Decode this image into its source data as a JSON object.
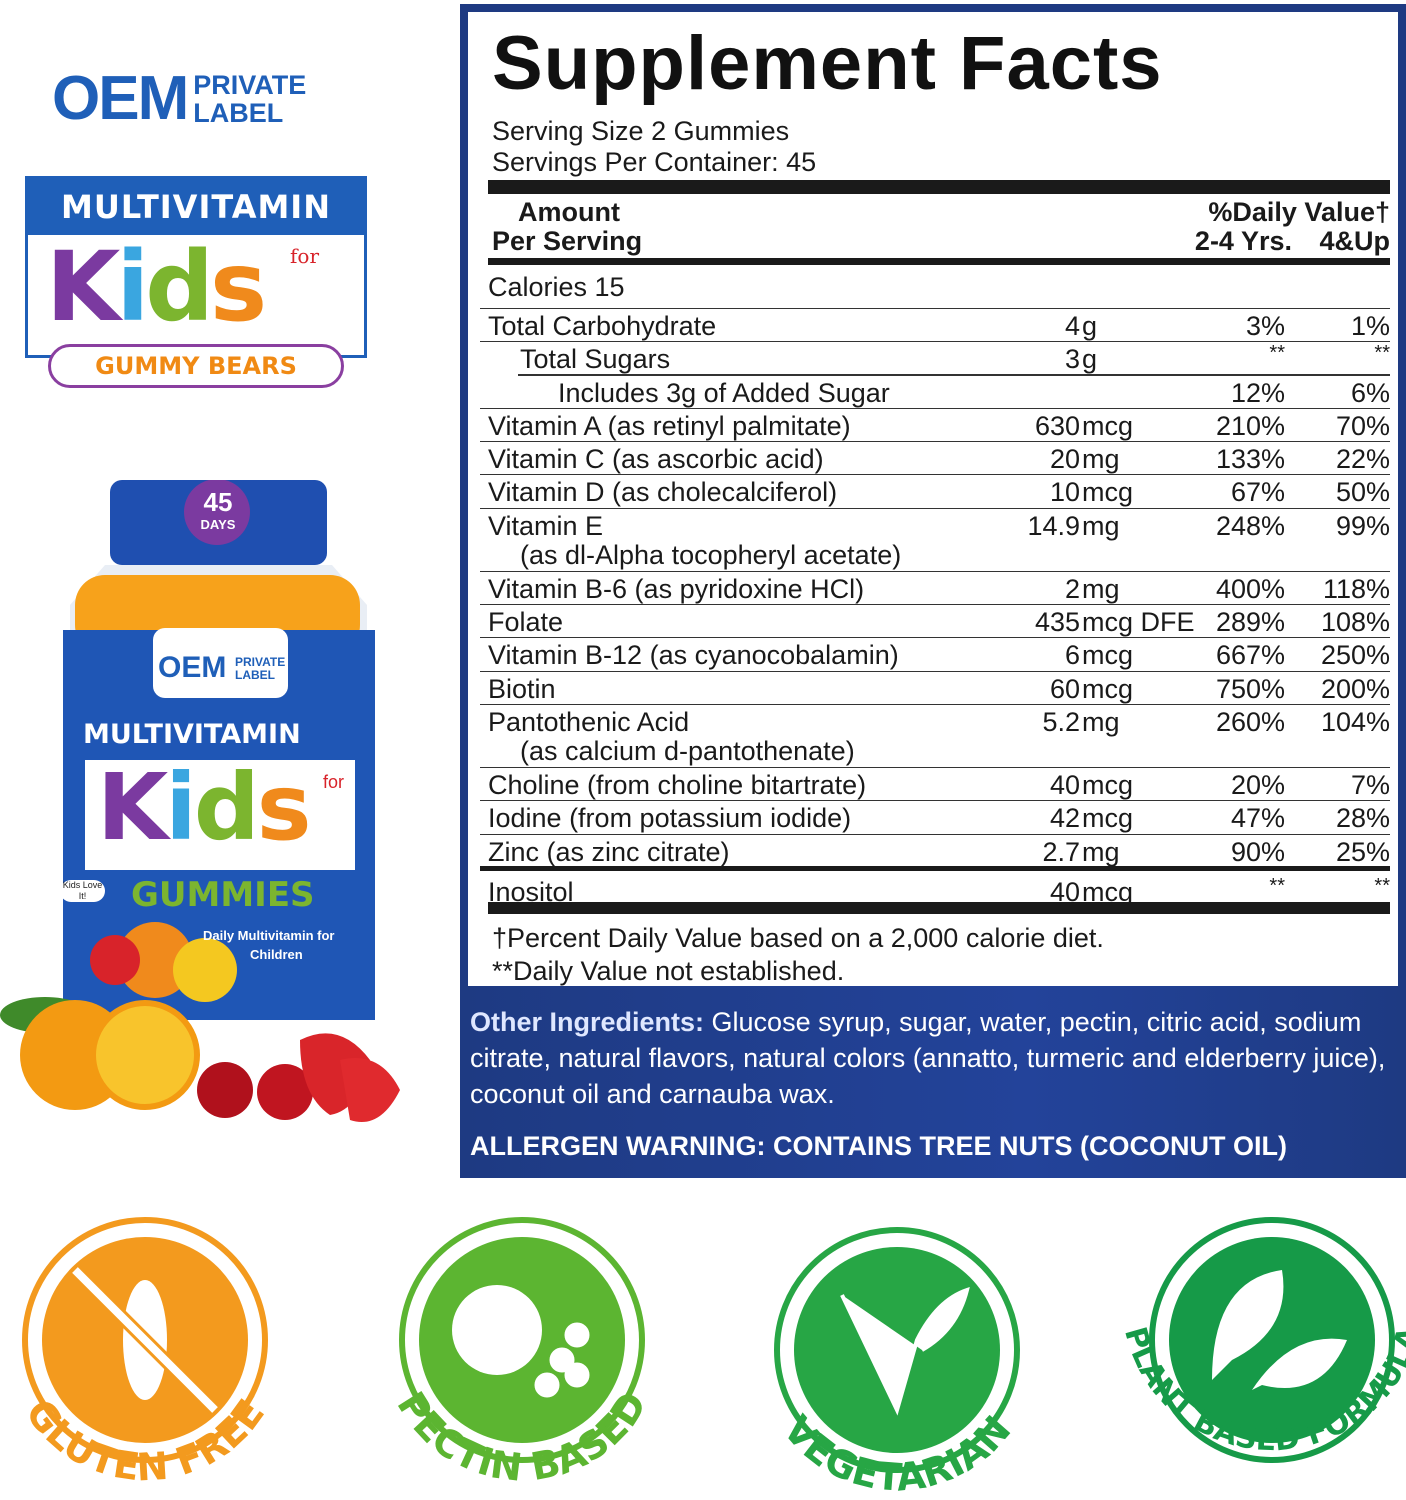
{
  "brand": {
    "oem": "OEM",
    "private": "PRIVATE",
    "label": "LABEL"
  },
  "kids_logo": {
    "multivitamin": "MULTIVITAMIN",
    "for": "for",
    "kids": "Kids",
    "gummy_bears": "GUMMY BEARS"
  },
  "bottle": {
    "days_num": "45",
    "days": "DAYS",
    "oem": "OEM",
    "private": "PRIVATE",
    "label": "LABEL",
    "multivitamin": "MULTIVITAMIN",
    "for": "for",
    "kids": "Kids",
    "gummies": "GUMMIES",
    "kids_love": "Kids Love It!",
    "daily": "Daily Multivitamin for",
    "children": "Children"
  },
  "facts": {
    "title": "Supplement Facts",
    "serving_size": "Serving Size 2 Gummies",
    "servings_per": "Servings Per Container: 45",
    "header": {
      "amount": "Amount",
      "per_serving": "Per Serving",
      "dv": "%Daily Value†",
      "col1": "2-4 Yrs.",
      "col2": "4&Up"
    },
    "rows": [
      {
        "name": "Calories  15",
        "num": "",
        "unit": "",
        "dv1": "",
        "dv2": ""
      },
      {
        "name": "Total Carbohydrate",
        "num": "4",
        "unit": "g",
        "dv1": "3%",
        "dv2": "1%"
      },
      {
        "name": "Total Sugars",
        "indent": 1,
        "num": "3",
        "unit": "g",
        "dv1": "**",
        "dv2": "**"
      },
      {
        "name": "Includes 3g of Added Sugar",
        "indent": 2,
        "num": "",
        "unit": "",
        "dv1": "12%",
        "dv2": "6%"
      },
      {
        "name": "Vitamin A (as retinyl palmitate)",
        "num": "630",
        "unit": "mcg",
        "dv1": "210%",
        "dv2": "70%"
      },
      {
        "name": "Vitamin C (as ascorbic acid)",
        "num": "20",
        "unit": "mg",
        "dv1": "133%",
        "dv2": "22%"
      },
      {
        "name": "Vitamin D (as cholecalciferol)",
        "num": "10",
        "unit": "mcg",
        "dv1": "67%",
        "dv2": "50%"
      },
      {
        "name": "Vitamin E",
        "sub": "(as dl-Alpha tocopheryl acetate)",
        "num": "14.9",
        "unit": "mg",
        "dv1": "248%",
        "dv2": "99%"
      },
      {
        "name": "Vitamin B-6 (as pyridoxine HCl)",
        "num": "2",
        "unit": "mg",
        "dv1": "400%",
        "dv2": "118%"
      },
      {
        "name": "Folate",
        "num": "435",
        "unit": "mcg DFE",
        "dv1": "289%",
        "dv2": "108%"
      },
      {
        "name": "Vitamin B-12 (as cyanocobalamin)",
        "num": "6",
        "unit": "mcg",
        "dv1": "667%",
        "dv2": "250%"
      },
      {
        "name": "Biotin",
        "num": "60",
        "unit": "mcg",
        "dv1": "750%",
        "dv2": "200%"
      },
      {
        "name": "Pantothenic Acid",
        "sub": "(as calcium d-pantothenate)",
        "num": "5.2",
        "unit": "mg",
        "dv1": "260%",
        "dv2": "104%"
      },
      {
        "name": "Choline (from choline bitartrate)",
        "num": "40",
        "unit": "mcg",
        "dv1": "20%",
        "dv2": "7%"
      },
      {
        "name": "Iodine (from potassium iodide)",
        "num": "42",
        "unit": "mcg",
        "dv1": "47%",
        "dv2": "28%"
      },
      {
        "name": "Zinc (as zinc citrate)",
        "num": "2.7",
        "unit": "mg",
        "dv1": "90%",
        "dv2": "25%"
      },
      {
        "name": "Inositol",
        "num": "40",
        "unit": "mcg",
        "dv1": "**",
        "dv2": "**"
      }
    ],
    "footnote1": "†Percent Daily Value based on a 2,000 calorie diet.",
    "footnote2": "**Daily Value not established."
  },
  "ingredients": {
    "label": "Other Ingredients:",
    "text": " Glucose syrup, sugar, water, pectin, citric acid, sodium citrate, natural flavors, natural colors (annatto, turmeric and elderberry juice), coconut oil and carnauba wax.",
    "allergen": "ALLERGEN WARNING: CONTAINS TREE NUTS (COCONUT OIL)"
  },
  "badges": [
    {
      "label": "GLUTEN FREE",
      "icon": "wheat-crossed-icon",
      "color": "#f39a1e"
    },
    {
      "label": "PECTIN BASED",
      "icon": "apple-grapes-icon",
      "color": "#5cb531"
    },
    {
      "label": "VEGETARIAN",
      "icon": "v-leaf-icon",
      "color": "#27a645"
    },
    {
      "label": "PLANT BASED FORMULA",
      "icon": "leaves-icon",
      "color": "#169a48"
    }
  ],
  "colors": {
    "navy": "#1e3a82",
    "brand_blue": "#1f5fb8"
  }
}
